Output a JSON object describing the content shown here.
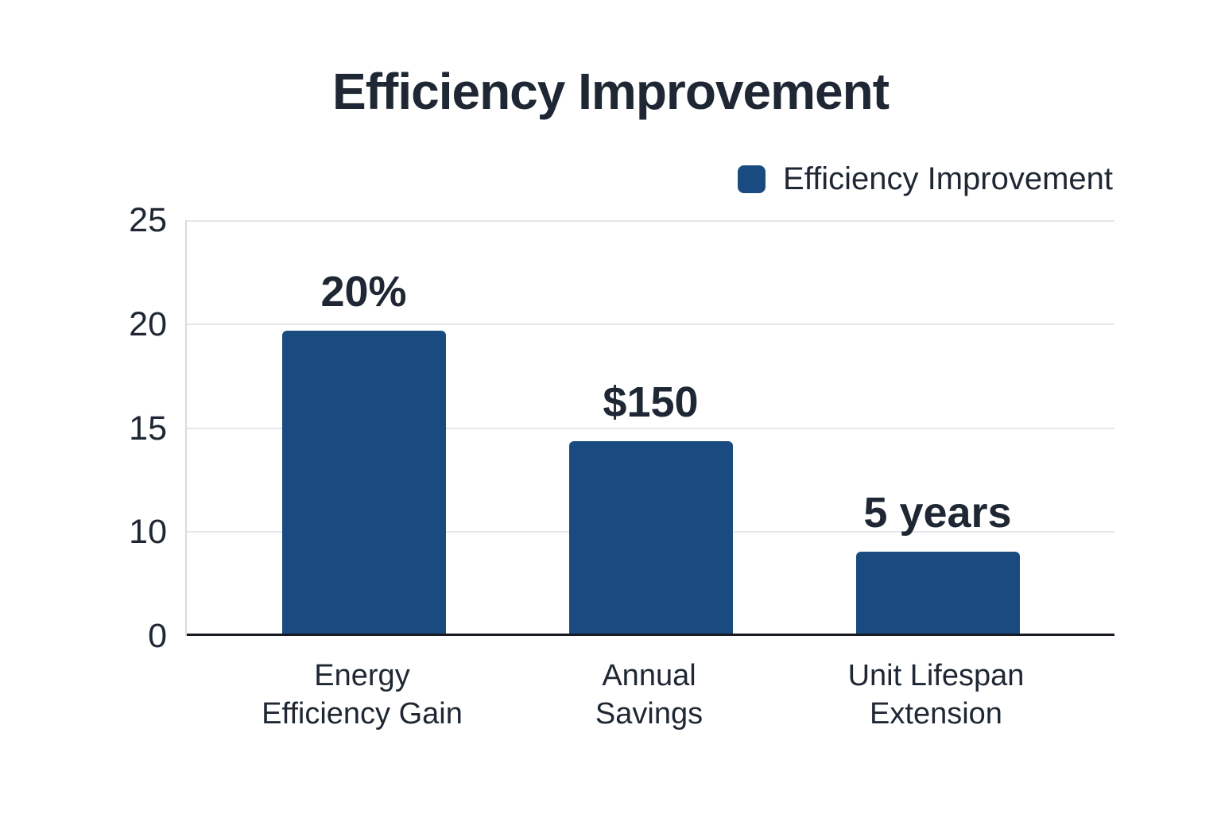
{
  "title": "Efficiency Improvement",
  "legend": {
    "label": "Efficiency Improvement"
  },
  "colors": {
    "bar": "#1a4b80",
    "text": "#1e2733",
    "grid": "#e4e7ea",
    "axis": "#161a22",
    "border": "#d7dbdf",
    "background": "#ffffff"
  },
  "y_axis": {
    "ticks": [
      "25",
      "20",
      "15",
      "10",
      "0"
    ]
  },
  "bars": [
    {
      "label": "Energy\nEfficiency Gain",
      "value_label": "20%",
      "height_frac": 0.734
    },
    {
      "label": "Annual\nSavings",
      "value_label": "$150",
      "height_frac": 0.469
    },
    {
      "label": "Unit Lifespan\nExtension",
      "value_label": "5 years",
      "height_frac": 0.203
    }
  ],
  "chart_data": {
    "type": "bar",
    "title": "Efficiency Improvement",
    "series_name": "Efficiency Improvement",
    "categories": [
      "Energy Efficiency Gain",
      "Annual Savings",
      "Unit Lifespan Extension"
    ],
    "values": [
      20,
      150,
      5
    ],
    "value_units": [
      "%",
      "$",
      "years"
    ],
    "value_labels": [
      "20%",
      "$150",
      "5 years"
    ],
    "bar_tops_in_axis_units": [
      19.7,
      14.4,
      8.1
    ],
    "y_ticks": [
      25,
      20,
      15,
      10,
      0
    ],
    "y_ticks_equally_spaced": true,
    "xlabel": "",
    "ylabel": "",
    "grid": true,
    "legend_position": "top-right",
    "bar_color": "#1a4b80"
  }
}
